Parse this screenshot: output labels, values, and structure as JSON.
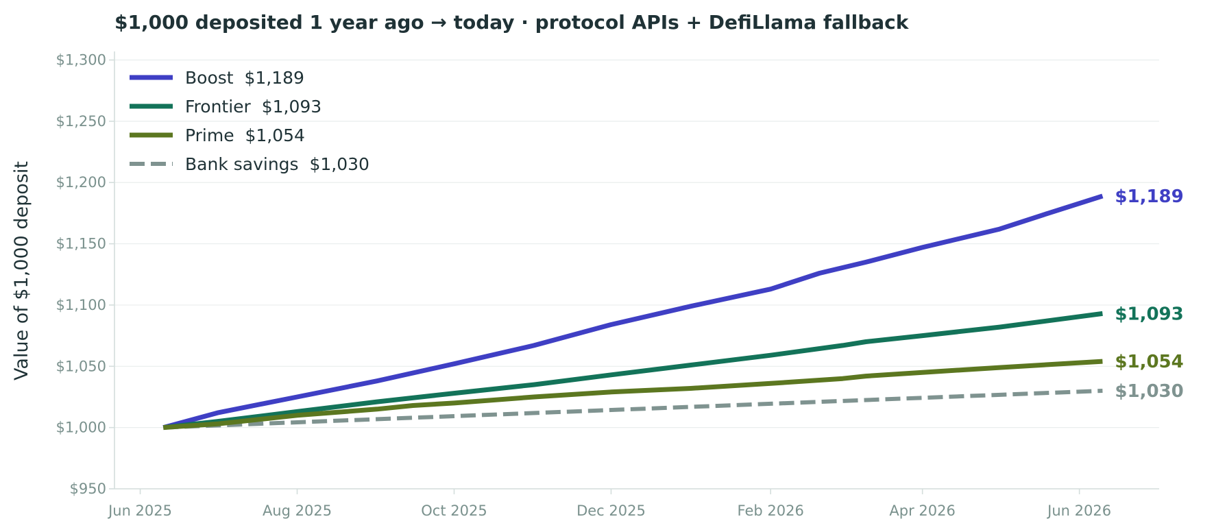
{
  "chart_data": {
    "type": "line",
    "title": "$1,000 deposited 1 year ago → today · protocol APIs + DefiLlama fallback",
    "xlabel": "",
    "ylabel": "Value of $1,000 deposit",
    "x_ticks": [
      "Jun 2025",
      "Aug 2025",
      "Oct 2025",
      "Dec 2025",
      "Feb 2026",
      "Apr 2026",
      "Jun 2026"
    ],
    "x_tick_dates": [
      "2025-06-01",
      "2025-08-01",
      "2025-10-01",
      "2025-12-01",
      "2026-02-01",
      "2026-04-01",
      "2026-06-01"
    ],
    "xlim": [
      "2025-05-22",
      "2026-07-02"
    ],
    "y_ticks": [
      "$950",
      "$1,000",
      "$1,050",
      "$1,100",
      "$1,150",
      "$1,200",
      "$1,250",
      "$1,300"
    ],
    "ylim": [
      950,
      1307
    ],
    "grid": "horizontal",
    "legend_position": "top-left",
    "series": [
      {
        "name": "Boost",
        "legend_label": "Boost  $1,189",
        "end_label": "$1,189",
        "color": "#3f3fc4",
        "dashed": false,
        "x": [
          "2025-06-10",
          "2025-07-01",
          "2025-07-20",
          "2025-08-01",
          "2025-09-01",
          "2025-10-01",
          "2025-11-01",
          "2025-12-01",
          "2026-01-01",
          "2026-02-01",
          "2026-02-20",
          "2026-03-10",
          "2026-04-01",
          "2026-05-01",
          "2026-05-20",
          "2026-06-10"
        ],
        "values": [
          1000,
          1012,
          1020,
          1025,
          1038,
          1052,
          1067,
          1084,
          1099,
          1113,
          1126,
          1135,
          1147,
          1162,
          1175,
          1189
        ]
      },
      {
        "name": "Frontier",
        "legend_label": "Frontier  $1,093",
        "end_label": "$1,093",
        "color": "#137359",
        "dashed": false,
        "x": [
          "2025-06-10",
          "2025-07-01",
          "2025-08-01",
          "2025-09-01",
          "2025-10-01",
          "2025-11-01",
          "2025-12-01",
          "2026-01-01",
          "2026-02-01",
          "2026-03-01",
          "2026-03-10",
          "2026-04-01",
          "2026-05-01",
          "2026-06-10"
        ],
        "values": [
          1000,
          1005,
          1013,
          1021,
          1028,
          1035,
          1043,
          1051,
          1059,
          1067,
          1070,
          1075,
          1082,
          1093
        ]
      },
      {
        "name": "Prime",
        "legend_label": "Prime  $1,054",
        "end_label": "$1,054",
        "color": "#5c7720",
        "dashed": false,
        "x": [
          "2025-06-10",
          "2025-07-01",
          "2025-08-01",
          "2025-09-01",
          "2025-09-15",
          "2025-10-01",
          "2025-11-01",
          "2025-12-01",
          "2026-01-01",
          "2026-02-01",
          "2026-03-01",
          "2026-03-10",
          "2026-04-01",
          "2026-05-01",
          "2026-06-10"
        ],
        "values": [
          1000,
          1003,
          1010,
          1015,
          1018,
          1020,
          1025,
          1029,
          1032,
          1036,
          1040,
          1042,
          1045,
          1049,
          1054
        ]
      },
      {
        "name": "Bank savings",
        "legend_label": "Bank savings  $1,030",
        "end_label": "$1,030",
        "color": "#7f9390",
        "dashed": true,
        "x": [
          "2025-06-10",
          "2026-06-10"
        ],
        "values": [
          1000,
          1030
        ]
      }
    ]
  }
}
